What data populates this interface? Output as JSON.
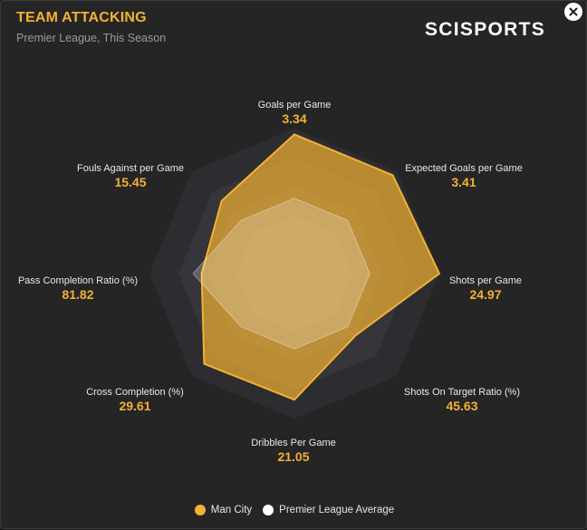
{
  "header": {
    "title": "TEAM ATTACKING",
    "subtitle": "Premier League, This Season",
    "brand": "SCISPORTS",
    "close_icon": "close-icon"
  },
  "colors": {
    "team": "#f2b233",
    "league": "#ffffff",
    "value": "#f2b233"
  },
  "chart_data": {
    "type": "radar",
    "axes": [
      {
        "label": "Goals per Game",
        "value_text": "3.34"
      },
      {
        "label": "Expected Goals per Game",
        "value_text": "3.41"
      },
      {
        "label": "Shots per Game",
        "value_text": "24.97"
      },
      {
        "label": "Shots On Target Ratio (%)",
        "value_text": "45.63"
      },
      {
        "label": "Dribbles Per Game",
        "value_text": "21.05"
      },
      {
        "label": "Cross Completion (%)",
        "value_text": "29.61"
      },
      {
        "label": "Pass Completion Ratio (%)",
        "value_text": "81.82"
      },
      {
        "label": "Fouls Against per Game",
        "value_text": "15.45"
      }
    ],
    "series": [
      {
        "name": "Man City",
        "relative_values": [
          0.96,
          0.96,
          1.0,
          0.6,
          0.87,
          0.88,
          0.64,
          0.71
        ]
      },
      {
        "name": "Premier League Average",
        "relative_values": [
          0.52,
          0.52,
          0.52,
          0.52,
          0.52,
          0.52,
          0.7,
          0.52
        ]
      }
    ],
    "rings": 5,
    "legend_position": "bottom-center"
  },
  "legend": [
    {
      "label": "Man City"
    },
    {
      "label": "Premier League Average"
    }
  ]
}
